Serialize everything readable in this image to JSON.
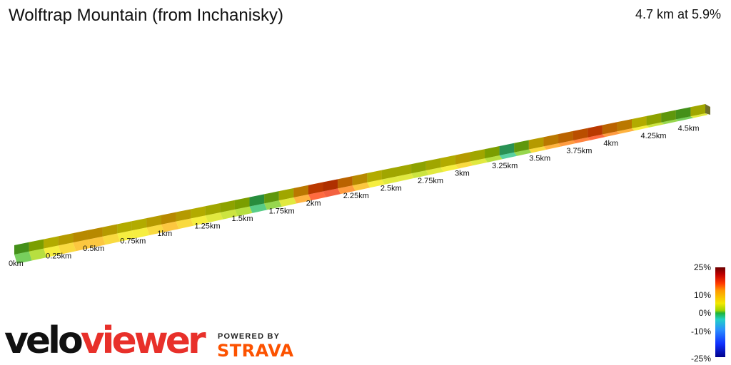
{
  "header": {
    "title": "Wolftrap Mountain (from Inchanisky)",
    "summary": "4.7 km at 5.9%"
  },
  "chart_data": {
    "type": "area",
    "title": "Wolftrap Mountain (from Inchanisky)",
    "x_unit": "km",
    "tick_labels": [
      "0km",
      "0.25km",
      "0.5km",
      "0.75km",
      "1km",
      "1.25km",
      "1.5km",
      "1.75km",
      "2km",
      "2.25km",
      "2.5km",
      "2.75km",
      "3km",
      "3.25km",
      "3.5km",
      "3.75km",
      "4km",
      "4.25km",
      "4.5km"
    ],
    "distance_km": [
      0,
      0.1,
      0.2,
      0.3,
      0.4,
      0.5,
      0.6,
      0.7,
      0.8,
      0.9,
      1.0,
      1.1,
      1.2,
      1.3,
      1.4,
      1.5,
      1.6,
      1.7,
      1.8,
      1.9,
      2.0,
      2.1,
      2.2,
      2.3,
      2.4,
      2.5,
      2.6,
      2.7,
      2.8,
      2.9,
      3.0,
      3.1,
      3.2,
      3.3,
      3.4,
      3.5,
      3.6,
      3.7,
      3.8,
      3.9,
      4.0,
      4.1,
      4.2,
      4.3,
      4.4,
      4.5,
      4.6,
      4.7
    ],
    "gradient_pct": [
      1,
      3,
      6,
      7,
      8,
      8,
      7,
      6,
      6,
      7,
      8,
      7,
      6,
      5,
      4,
      3,
      -1,
      2,
      5,
      9,
      12,
      13,
      10,
      8,
      6,
      5,
      5,
      4,
      5,
      6,
      7,
      5,
      3,
      -2,
      2,
      7,
      9,
      10,
      11,
      12,
      10,
      9,
      6,
      4,
      2,
      1,
      5,
      6
    ],
    "legend": {
      "ticks": [
        "25%",
        "10%",
        "0%",
        "-10%",
        "-25%"
      ],
      "colors": [
        "#6b0000",
        "#c00000",
        "#ff3a00",
        "#ff9a00",
        "#f3e800",
        "#9fd400",
        "#1fb43a",
        "#22d0c8",
        "#2a8cff",
        "#1030ff",
        "#00008a"
      ]
    }
  },
  "branding": {
    "logo_part1": "velo",
    "logo_part2": "viewer",
    "powered_by": "POWERED BY",
    "strava": "STRAVA"
  }
}
